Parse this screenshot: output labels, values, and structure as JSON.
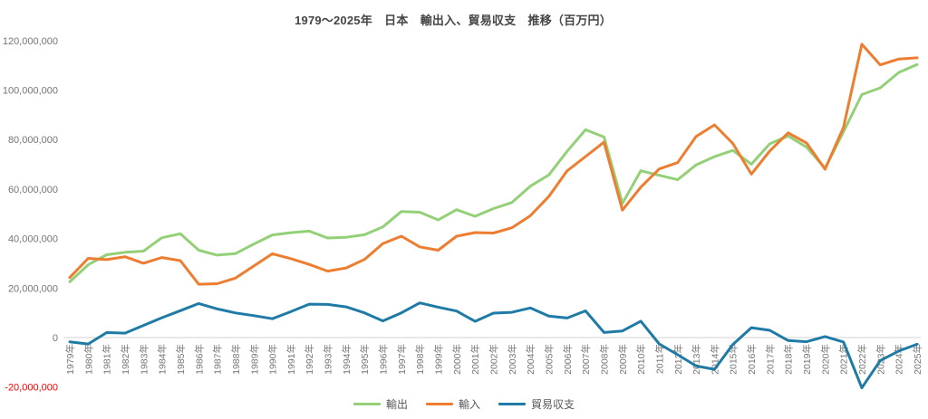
{
  "title": "1979～2025年　日本　輸出入、貿易収支　推移（百万円）",
  "chart_data": {
    "type": "line",
    "title": "1979～2025年　日本　輸出入、貿易収支　推移（百万円）",
    "unit_label": "百万円",
    "xlabel": "",
    "ylabel": "",
    "ylim": [
      -20000000,
      120000000
    ],
    "ytick_interval": 20000000,
    "grid": false,
    "zero_axis_line": true,
    "legend_position": "bottom",
    "colors": {
      "axis_text": "#757575",
      "negative_tick": "#ff0000",
      "zero_line": "#d9d9d9",
      "title_text": "#454545"
    },
    "yticks": [
      {
        "v": -20000000,
        "label": "-20,000,000"
      },
      {
        "v": 0,
        "label": "0"
      },
      {
        "v": 20000000,
        "label": "20,000,000"
      },
      {
        "v": 40000000,
        "label": "40,000,000"
      },
      {
        "v": 60000000,
        "label": "60,000,000"
      },
      {
        "v": 80000000,
        "label": "80,000,000"
      },
      {
        "v": 100000000,
        "label": "100,000,000"
      },
      {
        "v": 120000000,
        "label": "120,000,000"
      }
    ],
    "categories": [
      "1979年",
      "1980年",
      "1981年",
      "1982年",
      "1983年",
      "1984年",
      "1985年",
      "1986年",
      "1987年",
      "1988年",
      "1989年",
      "1990年",
      "1991年",
      "1992年",
      "1993年",
      "1994年",
      "1995年",
      "1996年",
      "1997年",
      "1998年",
      "1999年",
      "2000年",
      "2001年",
      "2002年",
      "2003年",
      "2004年",
      "2005年",
      "2006年",
      "2007年",
      "2008年",
      "2009年",
      "2010年",
      "2011年",
      "2012年",
      "2013年",
      "2014年",
      "2015年",
      "2016年",
      "2017年",
      "2018年",
      "2019年",
      "2020年",
      "2021年",
      "2022年",
      "2023年",
      "2024年",
      "2025年"
    ],
    "series": [
      {
        "name": "輸出",
        "color": "#93d077",
        "values": [
          22532000,
          29383000,
          33469000,
          34433000,
          34909000,
          40325000,
          41956000,
          35290000,
          33315000,
          33939000,
          37823000,
          41457000,
          42360000,
          43012000,
          40202000,
          40498000,
          41531000,
          44731000,
          50938000,
          50645000,
          47548000,
          51654000,
          48979000,
          52109000,
          54548000,
          61170000,
          65657000,
          75246000,
          83931000,
          81018000,
          54171000,
          67400000,
          65546000,
          63748000,
          69774000,
          73093000,
          75614000,
          70036000,
          78286000,
          81479000,
          76932000,
          68399000,
          83091000,
          98188000,
          100886000,
          107091000,
          110300000
        ]
      },
      {
        "name": "輸入",
        "color": "#ed7d31",
        "values": [
          24245000,
          31995000,
          31464000,
          32656000,
          30015000,
          32321000,
          31085000,
          21551000,
          21737000,
          24006000,
          28979000,
          33855000,
          31900000,
          29527000,
          26826000,
          28104000,
          31549000,
          37993000,
          40956000,
          36654000,
          35268000,
          40938000,
          42416000,
          42228000,
          44362000,
          49217000,
          56949000,
          67344000,
          73136000,
          78955000,
          51499000,
          60765000,
          68111000,
          70689000,
          81243000,
          85909000,
          78406000,
          66042000,
          75379000,
          82703000,
          78600000,
          68011000,
          84875000,
          118503000,
          110171000,
          112524000,
          113000000
        ]
      },
      {
        "name": "貿易収支",
        "color": "#1f7ba6",
        "values": [
          -1713000,
          -2612000,
          2005000,
          1777000,
          4894000,
          8004000,
          10871000,
          13739000,
          11578000,
          9933000,
          8844000,
          7602000,
          10460000,
          13485000,
          13376000,
          12394000,
          9982000,
          6738000,
          9982000,
          13991000,
          12280000,
          10716000,
          6563000,
          9881000,
          10186000,
          11953000,
          8708000,
          7902000,
          10795000,
          2063000,
          2672000,
          6635000,
          -2565000,
          -6941000,
          -11469000,
          -12816000,
          -2792000,
          3994000,
          2907000,
          -1224000,
          -1668000,
          388000,
          -1784000,
          -20315000,
          -9285000,
          -5433000,
          -2700000
        ]
      }
    ]
  }
}
